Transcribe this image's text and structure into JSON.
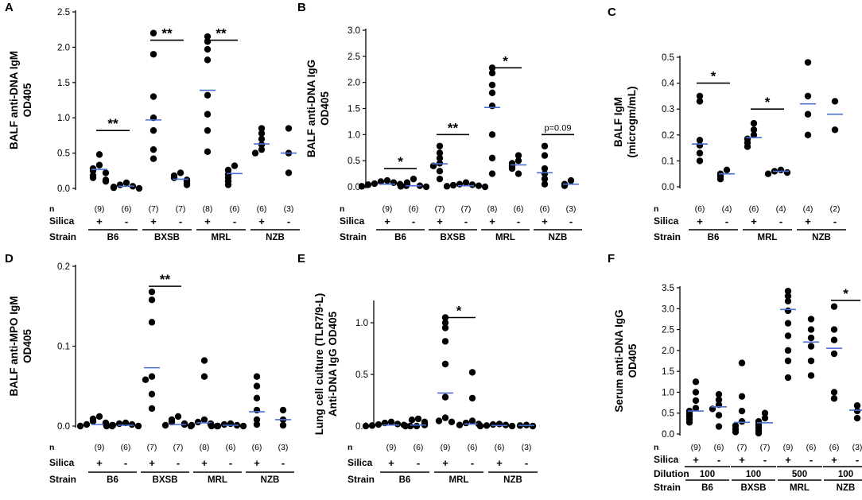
{
  "chart_data": [
    {
      "type": "scatter",
      "panel_label": "A",
      "ylabel_lines": [
        "BALF anti-DNA IgM",
        "OD405"
      ],
      "ylim": [
        0,
        2.5
      ],
      "yticks": [
        "0.0",
        "0.5",
        "1.0",
        "1.5",
        "2.0",
        "2.5"
      ],
      "ytick_values": [
        0,
        0.5,
        1.0,
        1.5,
        2.0,
        2.5
      ],
      "groups": [
        {
          "strain": "B6",
          "silica": "+",
          "n": "(9)",
          "values": [
            0.48,
            0.33,
            0.28,
            0.25,
            0.22,
            0.18,
            0.15,
            0.12,
            0.1
          ],
          "mean": 0.27
        },
        {
          "strain": "B6",
          "silica": "-",
          "n": "(6)",
          "values": [
            0.08,
            0.05,
            0.03,
            0.02,
            0.01,
            0.0
          ],
          "mean": 0.03
        },
        {
          "strain": "BXSB",
          "silica": "+",
          "n": "(7)",
          "values": [
            2.2,
            1.9,
            1.3,
            1.0,
            0.82,
            0.55,
            0.42
          ],
          "mean": 0.97
        },
        {
          "strain": "BXSB",
          "silica": "-",
          "n": "(7)",
          "values": [
            0.22,
            0.18,
            0.15,
            0.12,
            0.1,
            0.07,
            0.05
          ],
          "mean": 0.13
        },
        {
          "strain": "MRL",
          "silica": "+",
          "n": "(8)",
          "values": [
            2.15,
            2.08,
            1.97,
            1.82,
            1.32,
            1.05,
            0.82,
            0.52
          ],
          "mean": 1.39
        },
        {
          "strain": "MRL",
          "silica": "-",
          "n": "(6)",
          "values": [
            0.32,
            0.26,
            0.2,
            0.15,
            0.1,
            0.05
          ],
          "mean": 0.21
        },
        {
          "strain": "NZB",
          "silica": "+",
          "n": "(6)",
          "values": [
            0.85,
            0.78,
            0.7,
            0.62,
            0.55,
            0.5
          ],
          "mean": 0.63
        },
        {
          "strain": "NZB",
          "silica": "-",
          "n": "(3)",
          "values": [
            0.85,
            0.5,
            0.22
          ],
          "mean": 0.5
        }
      ],
      "significance": [
        {
          "label": "**",
          "from_group": 0,
          "to_group": 1,
          "y": 0.82
        },
        {
          "label": "**",
          "from_group": 2,
          "to_group": 3,
          "y": 2.1
        },
        {
          "label": "**",
          "from_group": 4,
          "to_group": 5,
          "y": 2.1
        }
      ],
      "strains": [
        "B6",
        "BXSB",
        "MRL",
        "NZB"
      ],
      "row_labels": {
        "n": "n",
        "silica": "Silica",
        "strain": "Strain"
      }
    },
    {
      "type": "scatter",
      "panel_label": "B",
      "ylabel_lines": [
        "BALF anti-DNA IgG",
        "OD405"
      ],
      "ylim": [
        0,
        3.0
      ],
      "yticks": [
        "0.0",
        "0.5",
        "1.0",
        "1.5",
        "2.0",
        "2.5",
        "3.0"
      ],
      "ytick_values": [
        0,
        0.5,
        1.0,
        1.5,
        2.0,
        2.5,
        3.0
      ],
      "groups": [
        {
          "strain": "B6",
          "silica": "+",
          "n": "(9)",
          "values": [
            0.12,
            0.1,
            0.08,
            0.06,
            0.05,
            0.04,
            0.03,
            0.02,
            0.01
          ],
          "mean": 0.05
        },
        {
          "strain": "B6",
          "silica": "-",
          "n": "(6)",
          "values": [
            0.15,
            0.08,
            0.05,
            0.02,
            0.01,
            0.0
          ],
          "mean": 0.02
        },
        {
          "strain": "BXSB",
          "silica": "+",
          "n": "(7)",
          "values": [
            0.78,
            0.65,
            0.55,
            0.45,
            0.4,
            0.3,
            0.15
          ],
          "mean": 0.44
        },
        {
          "strain": "BXSB",
          "silica": "-",
          "n": "(7)",
          "values": [
            0.08,
            0.05,
            0.04,
            0.03,
            0.02,
            0.01,
            0.0
          ],
          "mean": 0.02
        },
        {
          "strain": "MRL",
          "silica": "+",
          "n": "(8)",
          "values": [
            2.28,
            2.18,
            1.95,
            1.8,
            1.55,
            1.0,
            0.55,
            0.25
          ],
          "mean": 1.52
        },
        {
          "strain": "MRL",
          "silica": "-",
          "n": "(6)",
          "values": [
            0.6,
            0.5,
            0.45,
            0.4,
            0.35,
            0.25
          ],
          "mean": 0.42
        },
        {
          "strain": "NZB",
          "silica": "+",
          "n": "(6)",
          "values": [
            0.78,
            0.6,
            0.35,
            0.25,
            0.15,
            0.05
          ],
          "mean": 0.27
        },
        {
          "strain": "NZB",
          "silica": "-",
          "n": "(3)",
          "values": [
            0.12,
            0.05,
            0.02
          ],
          "mean": 0.05
        }
      ],
      "significance": [
        {
          "label": "*",
          "from_group": 0,
          "to_group": 1,
          "y": 0.35
        },
        {
          "label": "**",
          "from_group": 2,
          "to_group": 3,
          "y": 1.0
        },
        {
          "label": "*",
          "from_group": 4,
          "to_group": 5,
          "y": 2.28
        },
        {
          "label": "p=0.09",
          "from_group": 6,
          "to_group": 7,
          "y": 1.0
        }
      ],
      "strains": [
        "B6",
        "BXSB",
        "MRL",
        "NZB"
      ],
      "row_labels": {
        "n": "n",
        "silica": "Silica",
        "strain": "Strain"
      }
    },
    {
      "type": "scatter",
      "panel_label": "C",
      "ylabel_lines": [
        "BALF  IgM",
        "(microgm/mL)"
      ],
      "ylim": [
        0,
        0.5
      ],
      "yticks": [
        "0.0",
        "0.1",
        "0.2",
        "0.3",
        "0.4",
        "0.5"
      ],
      "ytick_values": [
        0,
        0.1,
        0.2,
        0.3,
        0.4,
        0.5
      ],
      "groups": [
        {
          "strain": "B6",
          "silica": "+",
          "n": "(6)",
          "values": [
            0.35,
            0.33,
            0.18,
            0.16,
            0.13,
            0.1
          ],
          "mean": 0.165
        },
        {
          "strain": "B6",
          "silica": "-",
          "n": "(4)",
          "values": [
            0.065,
            0.05,
            0.04,
            0.03
          ],
          "mean": 0.05
        },
        {
          "strain": "MRL",
          "silica": "+",
          "n": "(6)",
          "values": [
            0.245,
            0.22,
            0.2,
            0.185,
            0.17,
            0.155
          ],
          "mean": 0.19
        },
        {
          "strain": "MRL",
          "silica": "-",
          "n": "(4)",
          "values": [
            0.065,
            0.06,
            0.055,
            0.05
          ],
          "mean": 0.06
        },
        {
          "strain": "NZB",
          "silica": "+",
          "n": "(4)",
          "values": [
            0.48,
            0.35,
            0.28,
            0.2
          ],
          "mean": 0.32
        },
        {
          "strain": "NZB",
          "silica": "-",
          "n": "(2)",
          "values": [
            0.33,
            0.22
          ],
          "mean": 0.28
        }
      ],
      "significance": [
        {
          "label": "*",
          "from_group": 0,
          "to_group": 1,
          "y": 0.4
        },
        {
          "label": "*",
          "from_group": 2,
          "to_group": 3,
          "y": 0.3
        }
      ],
      "strains": [
        "B6",
        "MRL",
        "NZB"
      ],
      "row_labels": {
        "n": "n",
        "silica": "Silica",
        "strain": "Strain"
      }
    },
    {
      "type": "scatter",
      "panel_label": "D",
      "ylabel_lines": [
        "BALF anti-MPO IgM",
        "OD405"
      ],
      "ylim": [
        0,
        0.2
      ],
      "yticks": [
        "0.0",
        "0.1",
        "0.2"
      ],
      "ytick_values": [
        0,
        0.1,
        0.2
      ],
      "groups": [
        {
          "strain": "B6",
          "silica": "+",
          "n": "(9)",
          "values": [
            0.012,
            0.009,
            0.006,
            0.004,
            0.003,
            0.002,
            0.001,
            0.0,
            0.0
          ],
          "mean": 0.002
        },
        {
          "strain": "B6",
          "silica": "-",
          "n": "(6)",
          "values": [
            0.004,
            0.003,
            0.002,
            0.001,
            0.0,
            0.0
          ],
          "mean": 0.001
        },
        {
          "strain": "BXSB",
          "silica": "+",
          "n": "(7)",
          "values": [
            0.168,
            0.158,
            0.13,
            0.062,
            0.058,
            0.04,
            0.022
          ],
          "mean": 0.073
        },
        {
          "strain": "BXSB",
          "silica": "-",
          "n": "(7)",
          "values": [
            0.012,
            0.008,
            0.005,
            0.003,
            0.002,
            0.001,
            0.0
          ],
          "mean": 0.002
        },
        {
          "strain": "MRL",
          "silica": "+",
          "n": "(8)",
          "values": [
            0.082,
            0.062,
            0.008,
            0.005,
            0.003,
            0.002,
            0.001,
            0.0
          ],
          "mean": 0.004
        },
        {
          "strain": "MRL",
          "silica": "-",
          "n": "(6)",
          "values": [
            0.003,
            0.002,
            0.001,
            0.0,
            0.0,
            0.0
          ],
          "mean": 0.001
        },
        {
          "strain": "NZB",
          "silica": "+",
          "n": "(6)",
          "values": [
            0.062,
            0.05,
            0.035,
            0.02,
            0.008,
            0.002
          ],
          "mean": 0.018
        },
        {
          "strain": "NZB",
          "silica": "-",
          "n": "(3)",
          "values": [
            0.02,
            0.008,
            0.001
          ],
          "mean": 0.008
        }
      ],
      "significance": [
        {
          "label": "**",
          "from_group": 2,
          "to_group": 3,
          "y": 0.175
        }
      ],
      "strains": [
        "B6",
        "BXSB",
        "MRL",
        "NZB"
      ],
      "row_labels": {
        "n": "n",
        "silica": "Silica",
        "strain": "Strain"
      }
    },
    {
      "type": "scatter",
      "panel_label": "E",
      "ylabel_lines": [
        "Lung cell culture (TLR7/9-L)",
        "Anti-DNA IgG  OD405"
      ],
      "ylim": [
        0,
        1.2
      ],
      "yticks": [
        "0.0",
        "0.5",
        "1.0"
      ],
      "ytick_values": [
        0,
        0.5,
        1.0
      ],
      "groups": [
        {
          "strain": "B6",
          "silica": "+",
          "n": "(9)",
          "values": [
            0.04,
            0.03,
            0.02,
            0.015,
            0.01,
            0.005,
            0.0,
            0.0,
            0.0
          ],
          "mean": 0.01
        },
        {
          "strain": "B6",
          "silica": "-",
          "n": "(6)",
          "values": [
            0.07,
            0.06,
            0.04,
            0.02,
            0.01,
            0.0
          ],
          "mean": 0.01
        },
        {
          "strain": "MRL",
          "silica": "+",
          "n": "(9)",
          "values": [
            1.05,
            1.0,
            0.95,
            0.82,
            0.6,
            0.28,
            0.08,
            0.05,
            0.04
          ],
          "mean": 0.32
        },
        {
          "strain": "MRL",
          "silica": "-",
          "n": "(6)",
          "values": [
            0.52,
            0.27,
            0.05,
            0.03,
            0.02,
            0.01
          ],
          "mean": 0.02
        },
        {
          "strain": "NZB",
          "silica": "+",
          "n": "(6)",
          "values": [
            0.02,
            0.015,
            0.01,
            0.005,
            0.0,
            0.0
          ],
          "mean": 0.005
        },
        {
          "strain": "NZB",
          "silica": "-",
          "n": "(3)",
          "values": [
            0.01,
            0.005,
            0.0
          ],
          "mean": 0.005
        }
      ],
      "significance": [
        {
          "label": "*",
          "from_group": 2,
          "to_group": 3,
          "y": 1.05
        }
      ],
      "strains": [
        "B6",
        "MRL",
        "NZB"
      ],
      "row_labels": {
        "n": "n",
        "silica": "Silica",
        "strain": "Strain"
      }
    },
    {
      "type": "scatter",
      "panel_label": "F",
      "ylabel_lines": [
        "Serum anti-DNA IgG",
        "OD405"
      ],
      "ylim": [
        0,
        3.5
      ],
      "yticks": [
        "0.0",
        "0.5",
        "1.0",
        "1.5",
        "2.0",
        "2.5",
        "3.0",
        "3.5"
      ],
      "ytick_values": [
        0,
        0.5,
        1.0,
        1.5,
        2.0,
        2.5,
        3.0,
        3.5
      ],
      "groups": [
        {
          "strain": "B6",
          "silica": "+",
          "n": "(9)",
          "values": [
            1.25,
            1.0,
            0.8,
            0.62,
            0.55,
            0.48,
            0.42,
            0.35,
            0.28
          ],
          "mean": 0.55
        },
        {
          "strain": "B6",
          "silica": "-",
          "n": "(6)",
          "values": [
            0.95,
            0.82,
            0.7,
            0.6,
            0.45,
            0.18
          ],
          "mean": 0.65
        },
        {
          "strain": "BXSB",
          "silica": "+",
          "n": "(7)",
          "values": [
            1.7,
            0.9,
            0.55,
            0.3,
            0.2,
            0.12,
            0.05
          ],
          "mean": 0.28
        },
        {
          "strain": "BXSB",
          "silica": "-",
          "n": "(7)",
          "values": [
            0.5,
            0.38,
            0.3,
            0.22,
            0.15,
            0.08,
            0.02
          ],
          "mean": 0.27
        },
        {
          "strain": "MRL",
          "silica": "+",
          "n": "(9)",
          "values": [
            3.42,
            3.3,
            3.18,
            2.95,
            2.65,
            2.35,
            2.0,
            1.75,
            1.35
          ],
          "mean": 2.98
        },
        {
          "strain": "MRL",
          "silica": "-",
          "n": "(6)",
          "values": [
            2.75,
            2.5,
            2.3,
            2.1,
            1.75,
            1.4
          ],
          "mean": 2.2
        },
        {
          "strain": "NZB",
          "silica": "+",
          "n": "(6)",
          "values": [
            3.05,
            2.5,
            2.25,
            1.92,
            1.0,
            0.85
          ],
          "mean": 2.05
        },
        {
          "strain": "NZB",
          "silica": "-",
          "n": "(3)",
          "values": [
            0.68,
            0.55,
            0.38
          ],
          "mean": 0.57
        }
      ],
      "significance": [
        {
          "label": "*",
          "from_group": 6,
          "to_group": 7,
          "y": 3.2
        }
      ],
      "strains": [
        "B6",
        "BXSB",
        "MRL",
        "NZB"
      ],
      "dilutions": [
        "100",
        "100",
        "500",
        "100"
      ],
      "row_labels": {
        "n": "n",
        "silica": "Silica",
        "dilution": "Dilution",
        "strain": "Strain"
      }
    }
  ]
}
